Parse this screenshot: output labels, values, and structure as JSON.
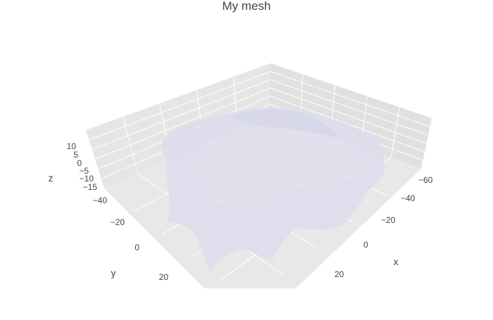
{
  "chart_data": {
    "type": "mesh3d",
    "title": "My mesh",
    "x_axis": {
      "title": "x",
      "tick_labels": [
        "−60",
        "−40",
        "−20",
        "0",
        "20"
      ],
      "range": [
        -65,
        30
      ]
    },
    "y_axis": {
      "title": "y",
      "tick_labels": [
        "−40",
        "−20",
        "0",
        "20"
      ],
      "range": [
        -45,
        28
      ]
    },
    "z_axis": {
      "title": "z",
      "tick_labels": [
        "10",
        "5",
        "0",
        "−5",
        "−10",
        "−15"
      ],
      "range": [
        -17,
        13
      ]
    },
    "grid": true,
    "colors": {
      "scene_background": "#e5e5e5",
      "grid_line": "#ffffff",
      "mesh_fill": "#dcdcec",
      "text": "#444444"
    },
    "opacity": 0.5
  }
}
